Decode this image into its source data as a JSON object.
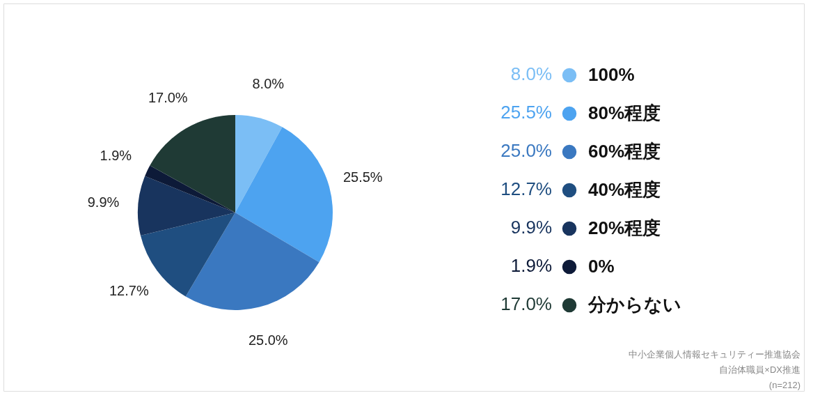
{
  "chart_data": {
    "type": "pie",
    "categories": [
      "100%",
      "80%程度",
      "60%程度",
      "40%程度",
      "20%程度",
      "0%",
      "分からない"
    ],
    "values": [
      8.0,
      25.5,
      25.0,
      12.7,
      9.9,
      1.9,
      17.0
    ],
    "colors": [
      "#7bbef5",
      "#4da3f0",
      "#3a78c0",
      "#1f4e80",
      "#18345e",
      "#0d1a38",
      "#1f3a35"
    ],
    "value_labels": [
      "8.0%",
      "25.5%",
      "25.0%",
      "12.7%",
      "9.9%",
      "1.9%",
      "17.0%"
    ],
    "legend": "right",
    "annotations": [
      "中小企業個人情報セキュリティー推進協会",
      "自治体職員×DX推進",
      "(n=212)"
    ]
  }
}
